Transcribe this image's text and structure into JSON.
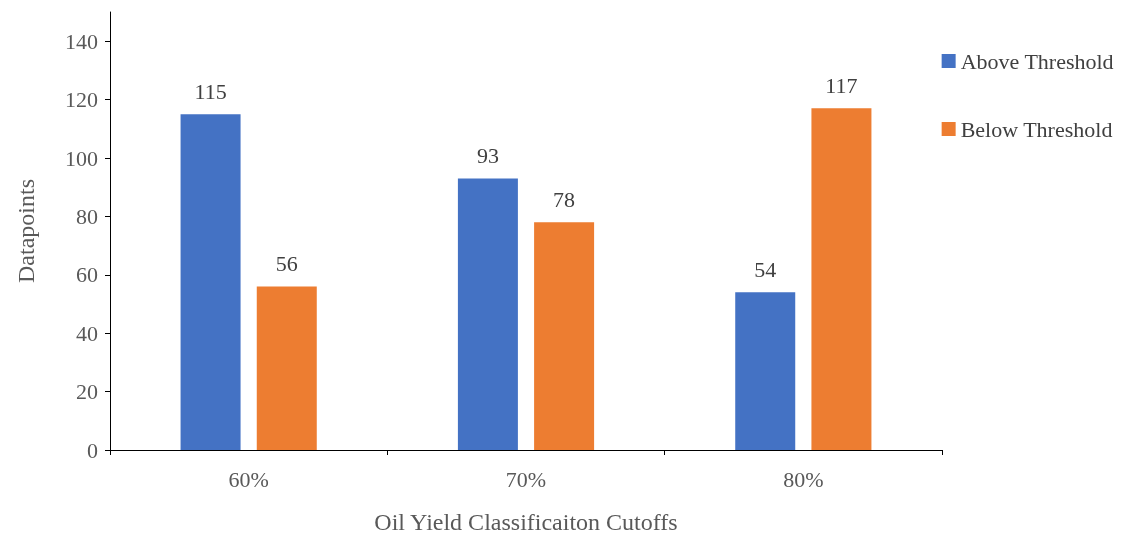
{
  "chart_data": {
    "type": "bar",
    "xlabel": "Oil Yield Classificaiton Cutoffs",
    "ylabel": "Datapoints",
    "categories": [
      "60%",
      "70%",
      "80%"
    ],
    "series": [
      {
        "name": "Above Threshold",
        "color": "#4472c4",
        "values": [
          115,
          93,
          54
        ]
      },
      {
        "name": "Below Threshold",
        "color": "#ed7d31",
        "values": [
          56,
          78,
          117
        ]
      }
    ],
    "ylim": [
      0,
      150
    ],
    "yticks": [
      0,
      20,
      40,
      60,
      80,
      100,
      120,
      140
    ],
    "grid": false,
    "legend": "top right",
    "data_labels": true
  }
}
